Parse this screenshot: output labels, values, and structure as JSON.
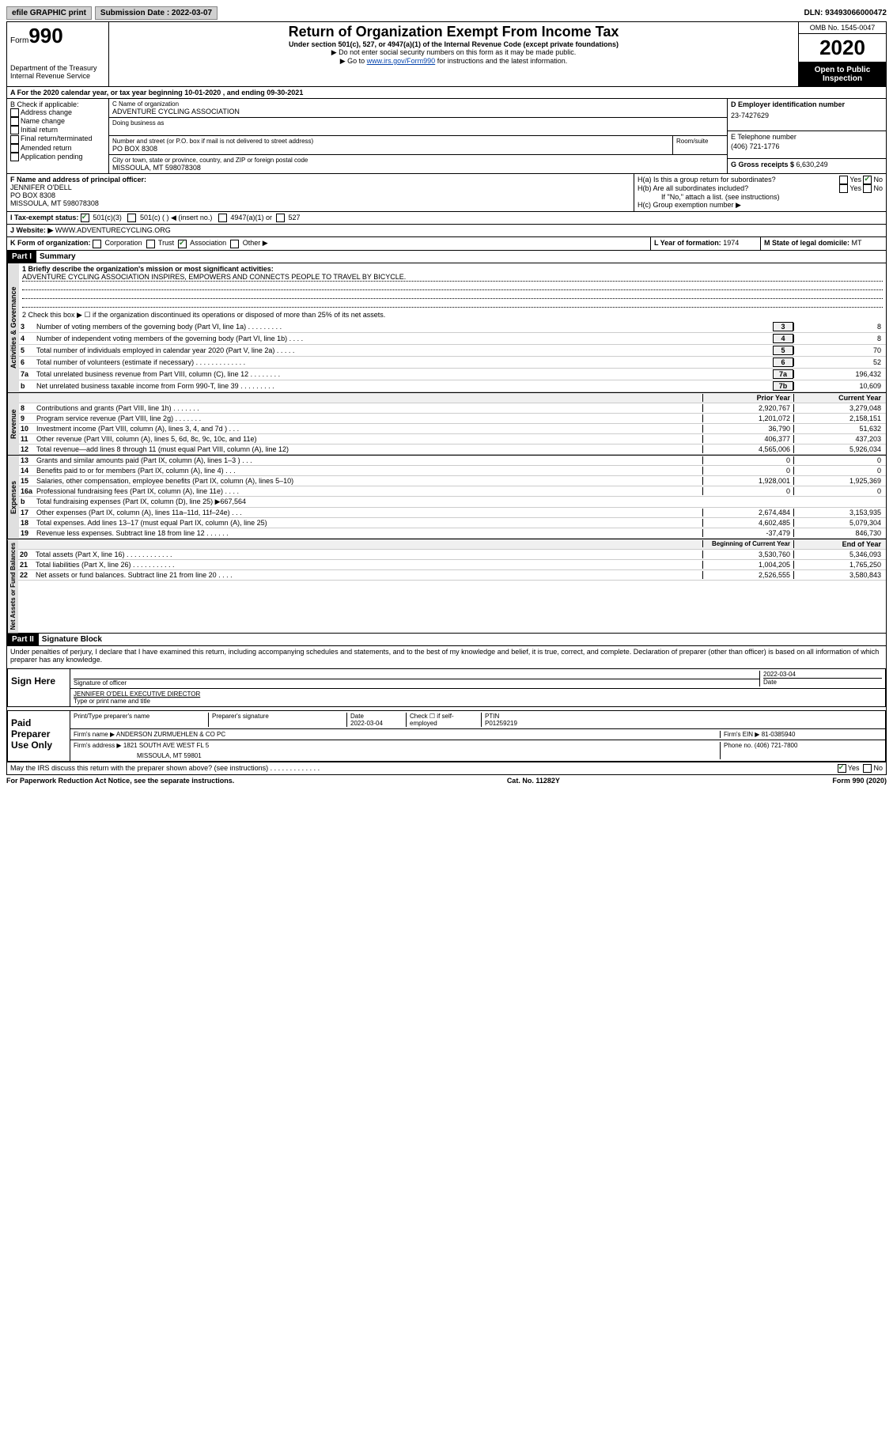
{
  "topbar": {
    "efile": "efile GRAPHIC print",
    "submission_label": "Submission Date : 2022-03-07",
    "dln": "DLN: 93493066000472"
  },
  "header": {
    "form_label": "Form",
    "form_number": "990",
    "dept": "Department of the Treasury",
    "irs": "Internal Revenue Service",
    "title": "Return of Organization Exempt From Income Tax",
    "subtitle": "Under section 501(c), 527, or 4947(a)(1) of the Internal Revenue Code (except private foundations)",
    "note1": "▶ Do not enter social security numbers on this form as it may be made public.",
    "note2_pre": "▶ Go to ",
    "note2_link": "www.irs.gov/Form990",
    "note2_post": " for instructions and the latest information.",
    "omb": "OMB No. 1545-0047",
    "year": "2020",
    "open": "Open to Public Inspection"
  },
  "period": "A For the 2020 calendar year, or tax year beginning 10-01-2020   , and ending 09-30-2021",
  "block_b": {
    "label": "B Check if applicable:",
    "items": [
      "Address change",
      "Name change",
      "Initial return",
      "Final return/terminated",
      "Amended return",
      "Application pending"
    ]
  },
  "block_c": {
    "name_label": "C Name of organization",
    "name": "ADVENTURE CYCLING ASSOCIATION",
    "dba_label": "Doing business as",
    "addr_label": "Number and street (or P.O. box if mail is not delivered to street address)",
    "room_label": "Room/suite",
    "addr": "PO BOX 8308",
    "city_label": "City or town, state or province, country, and ZIP or foreign postal code",
    "city": "MISSOULA, MT  598078308"
  },
  "block_d": {
    "label": "D Employer identification number",
    "value": "23-7427629"
  },
  "block_e": {
    "label": "E Telephone number",
    "value": "(406) 721-1776"
  },
  "block_g": {
    "label": "G Gross receipts $ ",
    "value": "6,630,249"
  },
  "block_f": {
    "label": "F Name and address of principal officer:",
    "name": "JENNIFER O'DELL",
    "addr": "PO BOX 8308",
    "city": "MISSOULA, MT  598078308"
  },
  "block_h": {
    "ha": "H(a)  Is this a group return for subordinates?",
    "hb": "H(b)  Are all subordinates included?",
    "hb_note": "If \"No,\" attach a list. (see instructions)",
    "hc": "H(c)  Group exemption number ▶",
    "yes": "Yes",
    "no": "No"
  },
  "block_i": {
    "label": "I  Tax-exempt status:",
    "opts": [
      "501(c)(3)",
      "501(c) (   ) ◀ (insert no.)",
      "4947(a)(1) or",
      "527"
    ]
  },
  "block_j": {
    "label": "J  Website: ▶",
    "value": "WWW.ADVENTURECYCLING.ORG"
  },
  "block_k": {
    "label": "K Form of organization:",
    "opts": [
      "Corporation",
      "Trust",
      "Association",
      "Other ▶"
    ]
  },
  "block_l": {
    "label": "L Year of formation: ",
    "value": "1974"
  },
  "block_m": {
    "label": "M State of legal domicile: ",
    "value": "MT"
  },
  "part1": {
    "header": "Part I",
    "title": "Summary",
    "line1_label": "1  Briefly describe the organization's mission or most significant activities:",
    "line1_text": "ADVENTURE CYCLING ASSOCIATION INSPIRES, EMPOWERS AND CONNECTS PEOPLE TO TRAVEL BY BICYCLE.",
    "line2": "2   Check this box ▶ ☐  if the organization discontinued its operations or disposed of more than 25% of its net assets."
  },
  "governance_lines": [
    {
      "num": "3",
      "desc": "Number of voting members of the governing body (Part VI, line 1a)  .   .   .   .   .   .   .   .   .",
      "box": "3",
      "val": "8"
    },
    {
      "num": "4",
      "desc": "Number of independent voting members of the governing body (Part VI, line 1b)   .   .   .   .",
      "box": "4",
      "val": "8"
    },
    {
      "num": "5",
      "desc": "Total number of individuals employed in calendar year 2020 (Part V, line 2a)   .   .   .   .   .",
      "box": "5",
      "val": "70"
    },
    {
      "num": "6",
      "desc": "Total number of volunteers (estimate if necessary)   .   .   .   .   .   .   .   .   .   .   .   .   .",
      "box": "6",
      "val": "52"
    },
    {
      "num": "7a",
      "desc": "Total unrelated business revenue from Part VIII, column (C), line 12   .   .   .   .   .   .   .   .",
      "box": "7a",
      "val": "196,432"
    },
    {
      "num": "b",
      "desc": "Net unrelated business taxable income from Form 990-T, line 39   .   .   .   .   .   .   .   .   .",
      "box": "7b",
      "val": "10,609"
    }
  ],
  "col_headers": {
    "prior": "Prior Year",
    "current": "Current Year"
  },
  "revenue_lines": [
    {
      "num": "8",
      "desc": "Contributions and grants (Part VIII, line 1h)   .   .   .   .   .   .   .",
      "prior": "2,920,767",
      "current": "3,279,048"
    },
    {
      "num": "9",
      "desc": "Program service revenue (Part VIII, line 2g)   .   .   .   .   .   .   .",
      "prior": "1,201,072",
      "current": "2,158,151"
    },
    {
      "num": "10",
      "desc": "Investment income (Part VIII, column (A), lines 3, 4, and 7d )   .   .   .",
      "prior": "36,790",
      "current": "51,632"
    },
    {
      "num": "11",
      "desc": "Other revenue (Part VIII, column (A), lines 5, 6d, 8c, 9c, 10c, and 11e)",
      "prior": "406,377",
      "current": "437,203"
    },
    {
      "num": "12",
      "desc": "Total revenue—add lines 8 through 11 (must equal Part VIII, column (A), line 12)",
      "prior": "4,565,006",
      "current": "5,926,034"
    }
  ],
  "expense_lines": [
    {
      "num": "13",
      "desc": "Grants and similar amounts paid (Part IX, column (A), lines 1–3 )   .   .   .",
      "prior": "0",
      "current": "0"
    },
    {
      "num": "14",
      "desc": "Benefits paid to or for members (Part IX, column (A), line 4)   .   .   .",
      "prior": "0",
      "current": "0"
    },
    {
      "num": "15",
      "desc": "Salaries, other compensation, employee benefits (Part IX, column (A), lines 5–10)",
      "prior": "1,928,001",
      "current": "1,925,369"
    },
    {
      "num": "16a",
      "desc": "Professional fundraising fees (Part IX, column (A), line 11e)   .   .   .   .",
      "prior": "0",
      "current": "0"
    },
    {
      "num": "b",
      "desc": "Total fundraising expenses (Part IX, column (D), line 25) ▶667,564",
      "prior": "",
      "current": ""
    },
    {
      "num": "17",
      "desc": "Other expenses (Part IX, column (A), lines 11a–11d, 11f–24e)   .   .   .",
      "prior": "2,674,484",
      "current": "3,153,935"
    },
    {
      "num": "18",
      "desc": "Total expenses. Add lines 13–17 (must equal Part IX, column (A), line 25)",
      "prior": "4,602,485",
      "current": "5,079,304"
    },
    {
      "num": "19",
      "desc": "Revenue less expenses. Subtract line 18 from line 12   .   .   .   .   .   .",
      "prior": "-37,479",
      "current": "846,730"
    }
  ],
  "net_headers": {
    "begin": "Beginning of Current Year",
    "end": "End of Year"
  },
  "net_lines": [
    {
      "num": "20",
      "desc": "Total assets (Part X, line 16)   .   .   .   .   .   .   .   .   .   .   .   .",
      "prior": "3,530,760",
      "current": "5,346,093"
    },
    {
      "num": "21",
      "desc": "Total liabilities (Part X, line 26)   .   .   .   .   .   .   .   .   .   .   .",
      "prior": "1,004,205",
      "current": "1,765,250"
    },
    {
      "num": "22",
      "desc": "Net assets or fund balances. Subtract line 21 from line 20   .   .   .   .",
      "prior": "2,526,555",
      "current": "3,580,843"
    }
  ],
  "side_labels": {
    "gov": "Activities & Governance",
    "rev": "Revenue",
    "exp": "Expenses",
    "net": "Net Assets or Fund Balances"
  },
  "part2": {
    "header": "Part II",
    "title": "Signature Block",
    "penalty": "Under penalties of perjury, I declare that I have examined this return, including accompanying schedules and statements, and to the best of my knowledge and belief, it is true, correct, and complete. Declaration of preparer (other than officer) is based on all information of which preparer has any knowledge."
  },
  "sign": {
    "label": "Sign Here",
    "sig_officer": "Signature of officer",
    "date": "2022-03-04",
    "date_label": "Date",
    "name": "JENNIFER O'DELL  EXECUTIVE DIRECTOR",
    "type_label": "Type or print name and title"
  },
  "paid": {
    "label": "Paid Preparer Use Only",
    "print_name_label": "Print/Type preparer's name",
    "sig_label": "Preparer's signature",
    "date_label": "Date",
    "date": "2022-03-04",
    "check_label": "Check ☐ if self-employed",
    "ptin_label": "PTIN",
    "ptin": "P01259219",
    "firm_name_label": "Firm's name     ▶",
    "firm_name": "ANDERSON ZURMUEHLEN & CO PC",
    "firm_ein_label": "Firm's EIN ▶",
    "firm_ein": "81-0385940",
    "firm_addr_label": "Firm's address ▶",
    "firm_addr1": "1821 SOUTH AVE WEST FL 5",
    "firm_addr2": "MISSOULA, MT  59801",
    "phone_label": "Phone no.",
    "phone": "(406) 721-7800"
  },
  "discuss": "May the IRS discuss this return with the preparer shown above? (see instructions)   .   .   .   .   .   .   .   .   .   .   .   .   .",
  "footer": {
    "left": "For Paperwork Reduction Act Notice, see the separate instructions.",
    "mid": "Cat. No. 11282Y",
    "right": "Form 990 (2020)"
  }
}
